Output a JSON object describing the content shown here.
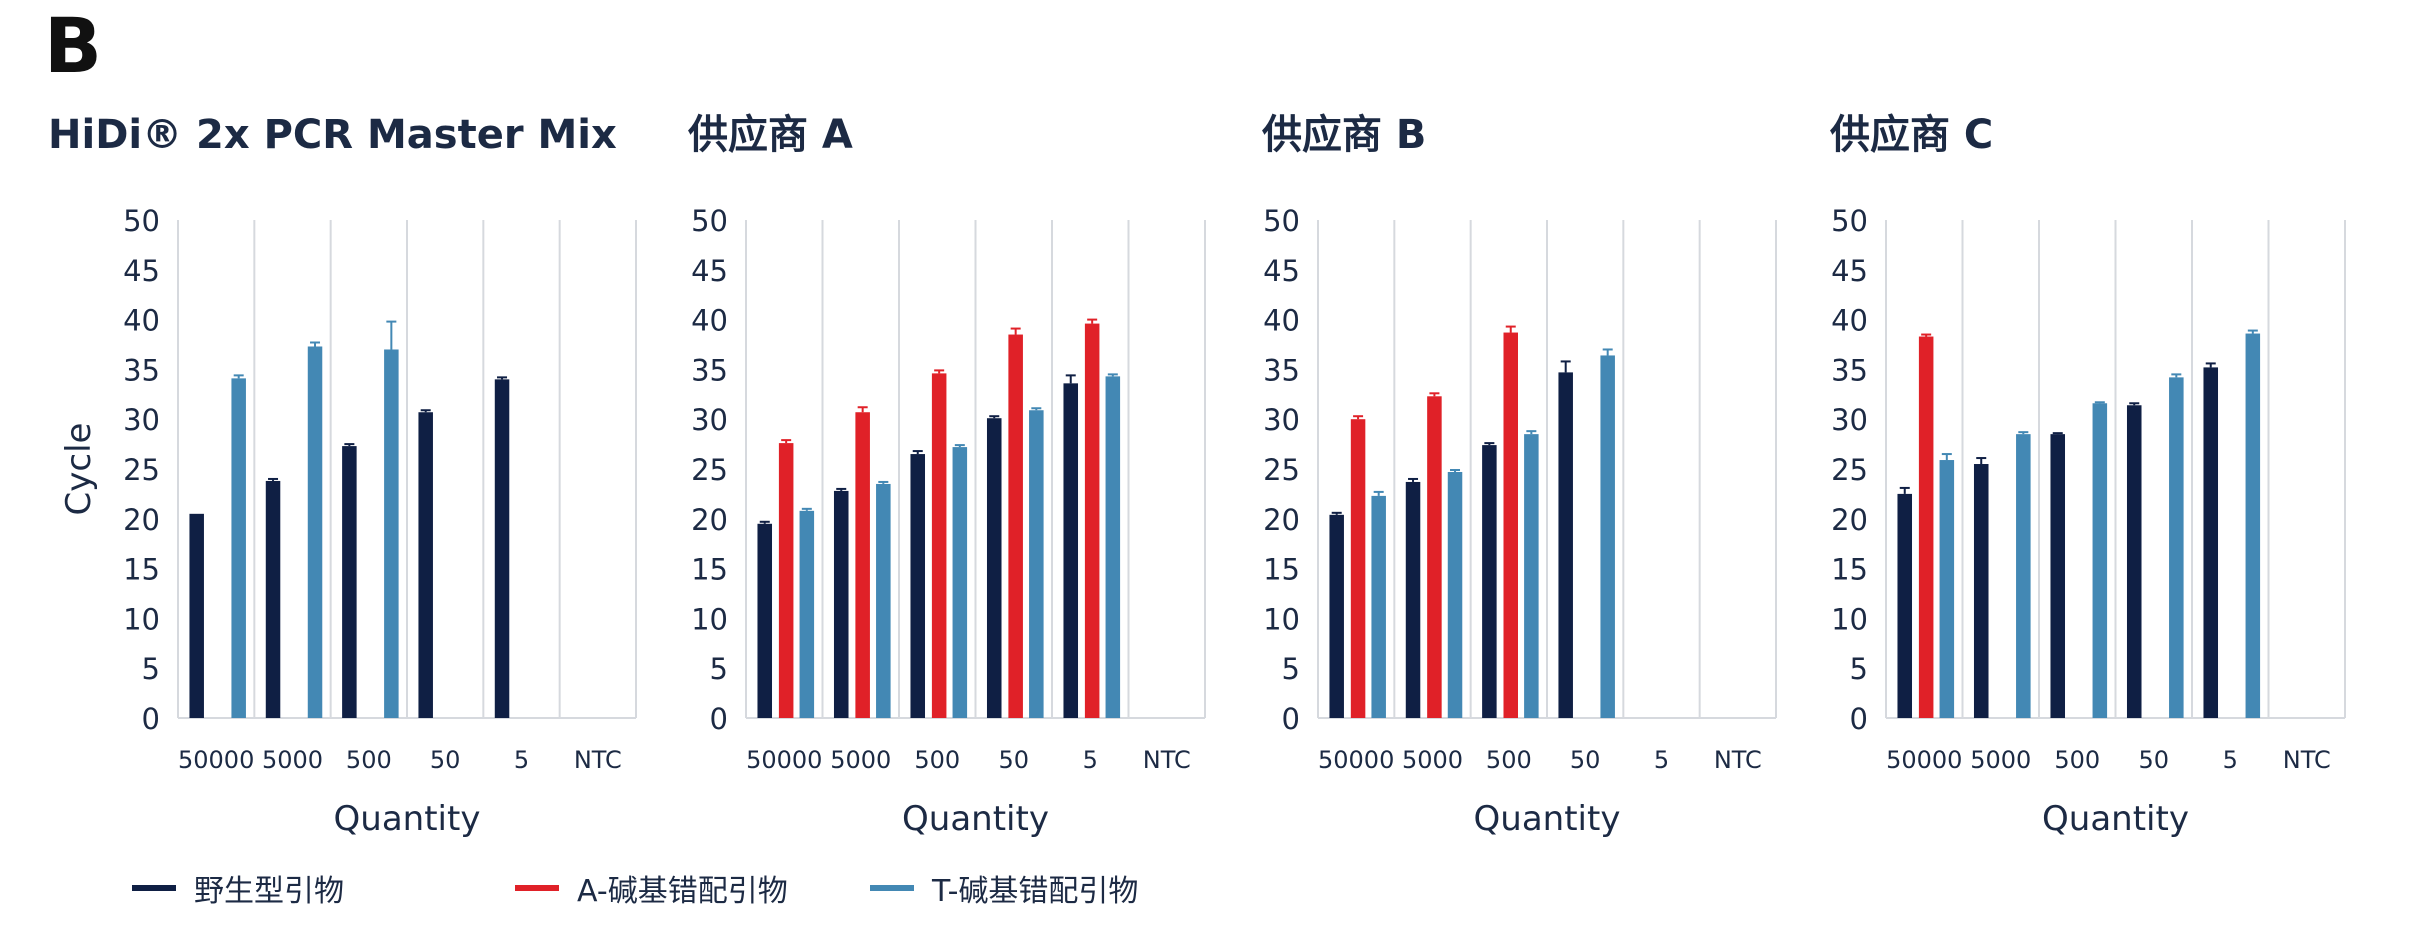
{
  "panel_label": "B",
  "colors": {
    "wild": "#0f1f44",
    "a": "#e02128",
    "t": "#4388b4",
    "grid": "#d6d9de",
    "text": "#1c2a44"
  },
  "chart_data": [
    {
      "type": "bar",
      "title": "HiDi® 2x PCR Master Mix",
      "categories": [
        "50000",
        "5000",
        "500",
        "50",
        "5",
        "NTC"
      ],
      "ylabel": "Cycle",
      "xlabel": "Quantity",
      "ylim": [
        0,
        50
      ],
      "yticks": [
        0,
        5,
        10,
        15,
        20,
        25,
        30,
        35,
        40,
        45,
        50
      ],
      "grid": "vertical",
      "series": [
        {
          "name": "野生型引物",
          "values": [
            20.5,
            23.8,
            27.3,
            30.7,
            34.0,
            null
          ],
          "errors": [
            0,
            0.2,
            0.2,
            0.2,
            0.2,
            0
          ]
        },
        {
          "name": "A-碱基错配引物",
          "values": [
            null,
            null,
            null,
            null,
            null,
            null
          ],
          "errors": [
            0,
            0,
            0,
            0,
            0,
            0
          ]
        },
        {
          "name": "T-碱基错配引物",
          "values": [
            34.1,
            37.3,
            37.0,
            null,
            null,
            null
          ],
          "errors": [
            0.3,
            0.4,
            2.8,
            0,
            0,
            0
          ]
        }
      ]
    },
    {
      "type": "bar",
      "title": "供应商 A",
      "categories": [
        "50000",
        "5000",
        "500",
        "50",
        "5",
        "NTC"
      ],
      "ylabel": "",
      "xlabel": "Quantity",
      "ylim": [
        0,
        50
      ],
      "yticks": [
        0,
        5,
        10,
        15,
        20,
        25,
        30,
        35,
        40,
        45,
        50
      ],
      "grid": "vertical",
      "series": [
        {
          "name": "野生型引物",
          "values": [
            19.5,
            22.8,
            26.5,
            30.1,
            33.6,
            null
          ],
          "errors": [
            0.2,
            0.2,
            0.3,
            0.2,
            0.8,
            0
          ]
        },
        {
          "name": "A-碱基错配引物",
          "values": [
            27.6,
            30.7,
            34.6,
            38.5,
            39.6,
            null
          ],
          "errors": [
            0.3,
            0.5,
            0.3,
            0.6,
            0.4,
            0
          ]
        },
        {
          "name": "T-碱基错配引物",
          "values": [
            20.8,
            23.5,
            27.2,
            30.9,
            34.3,
            null
          ],
          "errors": [
            0.2,
            0.2,
            0.2,
            0.2,
            0.2,
            0
          ]
        }
      ]
    },
    {
      "type": "bar",
      "title": "供应商 B",
      "categories": [
        "50000",
        "5000",
        "500",
        "50",
        "5",
        "NTC"
      ],
      "ylabel": "",
      "xlabel": "Quantity",
      "ylim": [
        0,
        50
      ],
      "yticks": [
        0,
        5,
        10,
        15,
        20,
        25,
        30,
        35,
        40,
        45,
        50
      ],
      "grid": "vertical",
      "series": [
        {
          "name": "野生型引物",
          "values": [
            20.4,
            23.7,
            27.4,
            34.7,
            null,
            null
          ],
          "errors": [
            0.2,
            0.3,
            0.2,
            1.1,
            0,
            0
          ]
        },
        {
          "name": "A-碱基错配引物",
          "values": [
            30.0,
            32.3,
            38.7,
            null,
            null,
            null
          ],
          "errors": [
            0.3,
            0.3,
            0.6,
            0,
            0,
            0
          ]
        },
        {
          "name": "T-碱基错配引物",
          "values": [
            22.3,
            24.7,
            28.5,
            36.4,
            null,
            null
          ],
          "errors": [
            0.4,
            0.2,
            0.3,
            0.6,
            0,
            0
          ]
        }
      ]
    },
    {
      "type": "bar",
      "title": "供应商 C",
      "categories": [
        "50000",
        "5000",
        "500",
        "50",
        "5",
        "NTC"
      ],
      "ylabel": "",
      "xlabel": "Quantity",
      "ylim": [
        0,
        50
      ],
      "yticks": [
        0,
        5,
        10,
        15,
        20,
        25,
        30,
        35,
        40,
        45,
        50
      ],
      "grid": "vertical",
      "series": [
        {
          "name": "野生型引物",
          "values": [
            22.5,
            25.5,
            28.5,
            31.4,
            35.2,
            null
          ],
          "errors": [
            0.6,
            0.6,
            0.1,
            0.2,
            0.4,
            0
          ]
        },
        {
          "name": "A-碱基错配引物",
          "values": [
            38.3,
            null,
            null,
            null,
            null,
            null
          ],
          "errors": [
            0.2,
            0,
            0,
            0,
            0,
            0
          ]
        },
        {
          "name": "T-碱基错配引物",
          "values": [
            25.9,
            28.5,
            31.6,
            34.2,
            38.6,
            null
          ],
          "errors": [
            0.6,
            0.2,
            0.1,
            0.3,
            0.3,
            0
          ]
        }
      ]
    }
  ],
  "legend": [
    {
      "label": "野生型引物"
    },
    {
      "label": "A-碱基错配引物"
    },
    {
      "label": "T-碱基错配引物"
    }
  ]
}
